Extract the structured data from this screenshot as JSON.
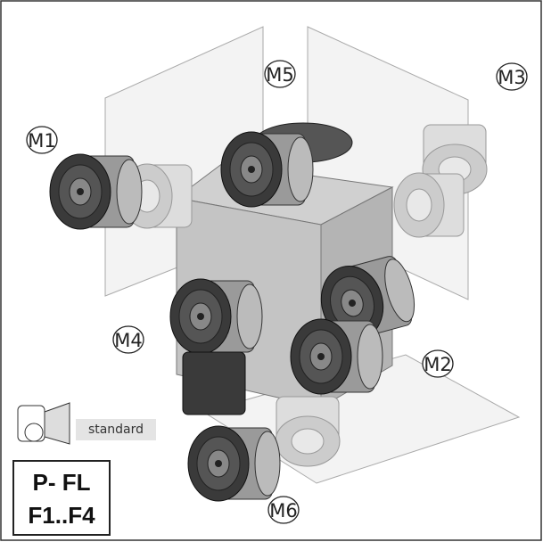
{
  "labels": {
    "m1": "M1",
    "m2": "M2",
    "m3": "M3",
    "m4": "M4",
    "m5": "M5",
    "m6": "M6"
  },
  "legend": {
    "caption": "standard"
  },
  "code_box": {
    "line1": "P- FL",
    "line2": "F1..F4"
  }
}
